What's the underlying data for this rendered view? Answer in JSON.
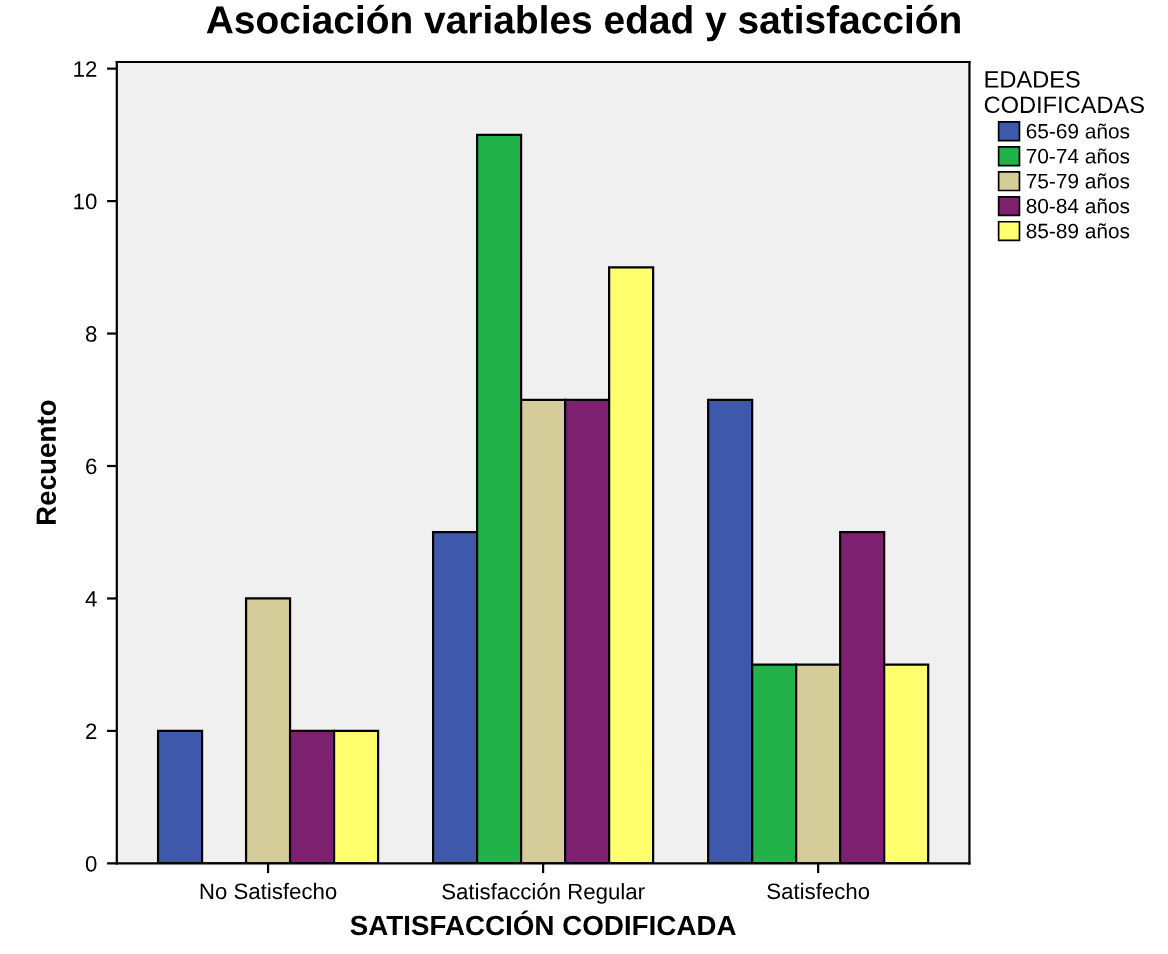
{
  "chart_data": {
    "type": "bar",
    "title": "Asociación variables edad y satisfacción",
    "xlabel": "SATISFACCIÓN CODIFICADA",
    "ylabel": "Recuento",
    "legend_title": "EDADES\nCODIFICADAS",
    "categories": [
      "No Satisfecho",
      "Satisfacción Regular",
      "Satisfecho"
    ],
    "series": [
      {
        "name": "65-69 años",
        "color": "#3e58ac",
        "values": [
          2,
          5,
          7
        ]
      },
      {
        "name": "70-74 años",
        "color": "#21b24a",
        "values": [
          0,
          11,
          3
        ]
      },
      {
        "name": "75-79 años",
        "color": "#d4cc99",
        "values": [
          4,
          7,
          3
        ]
      },
      {
        "name": "80-84 años",
        "color": "#7d2070",
        "values": [
          2,
          7,
          5
        ]
      },
      {
        "name": "85-89 años",
        "color": "#ffff6e",
        "values": [
          2,
          9,
          3
        ]
      }
    ],
    "ylim": [
      0,
      12.1
    ],
    "yticks": [
      0,
      2,
      4,
      6,
      8,
      10,
      12
    ],
    "grid": false,
    "legend": "top right"
  }
}
